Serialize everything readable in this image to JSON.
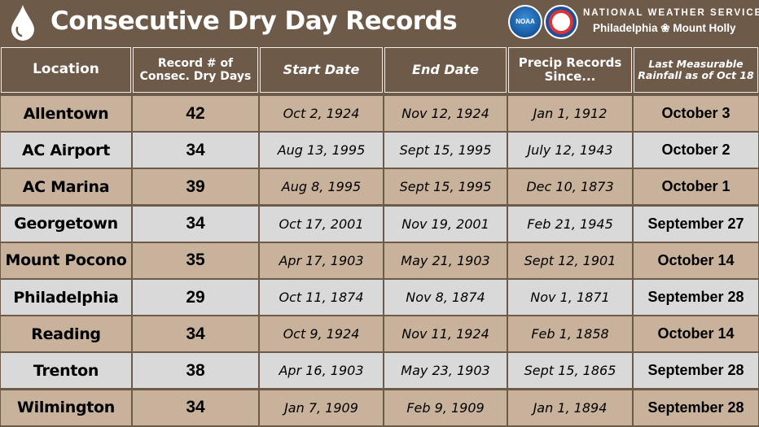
{
  "header": {
    "title": "Consecutive Dry Day Records",
    "logo_noaa_text": "NOAA",
    "org_line1": "NATIONAL WEATHER SERVICE",
    "org_line2": "Philadelphia ❀ Mount Holly",
    "icons": [
      "water-drop-icon",
      "noaa-logo-icon",
      "nws-logo-icon"
    ]
  },
  "columns": [
    "Location",
    "Record # of Consec. Dry Days",
    "Start Date",
    "End Date",
    "Precip Records Since...",
    "Last Measurable Rainfall as of Oct 18"
  ],
  "rows": [
    {
      "location": "Allentown",
      "record": "42",
      "start": "Oct 2, 1924",
      "end": "Nov 12, 1924",
      "since": "Jan 1, 1912",
      "last": "October 3"
    },
    {
      "location": "AC Airport",
      "record": "34",
      "start": "Aug 13, 1995",
      "end": "Sept 15, 1995",
      "since": "July 12, 1943",
      "last": "October 2"
    },
    {
      "location": "AC Marina",
      "record": "39",
      "start": "Aug 8, 1995",
      "end": "Sept 15, 1995",
      "since": "Dec 10, 1873",
      "last": "October 1"
    },
    {
      "location": "Georgetown",
      "record": "34",
      "start": "Oct 17, 2001",
      "end": "Nov 19, 2001",
      "since": "Feb 21, 1945",
      "last": "September 27"
    },
    {
      "location": "Mount Pocono",
      "record": "35",
      "start": "Apr 17, 1903",
      "end": "May 21, 1903",
      "since": "Sept 12, 1901",
      "last": "October 14"
    },
    {
      "location": "Philadelphia",
      "record": "29",
      "start": "Oct 11, 1874",
      "end": "Nov 8, 1874",
      "since": "Nov 1, 1871",
      "last": "September 28"
    },
    {
      "location": "Reading",
      "record": "34",
      "start": "Oct 9, 1924",
      "end": "Nov 11, 1924",
      "since": "Feb 1, 1858",
      "last": "October 14"
    },
    {
      "location": "Trenton",
      "record": "38",
      "start": "Apr 16, 1903",
      "end": "May 23, 1903",
      "since": "Sept 15, 1865",
      "last": "September 28"
    },
    {
      "location": "Wilmington",
      "record": "34",
      "start": "Jan 7, 1909",
      "end": "Feb 9, 1909",
      "since": "Jan 1, 1894",
      "last": "September 28"
    }
  ],
  "colors": {
    "brown": "#6e5a48",
    "tan": "#c9b29c",
    "gray": "#d9d9d9"
  }
}
